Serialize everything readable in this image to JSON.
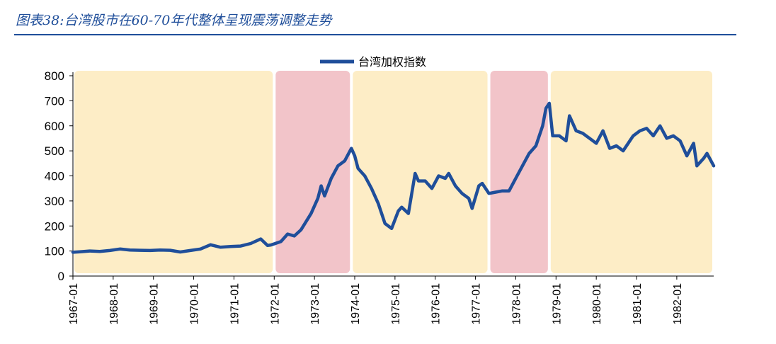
{
  "figure": {
    "title": "图表38:台湾股市在60-70年代整体呈现震荡调整走势"
  },
  "colors": {
    "line": "#1f4e9a",
    "range_band": "#fdedc6",
    "drawdown_band": "#f2c4c9",
    "axis": "#000000"
  },
  "chart_data": {
    "type": "line",
    "title": "",
    "xlabel": "",
    "ylabel": "",
    "ylim": [
      0,
      800
    ],
    "yticks": [
      0,
      100,
      200,
      300,
      400,
      500,
      600,
      700,
      800
    ],
    "xlim": [
      "1967-01",
      "1982-12"
    ],
    "xticks": [
      "1967-01",
      "1968-01",
      "1969-01",
      "1970-01",
      "1971-01",
      "1972-01",
      "1973-01",
      "1974-01",
      "1975-01",
      "1976-01",
      "1977-01",
      "1978-01",
      "1979-01",
      "1980-01",
      "1981-01",
      "1982-01"
    ],
    "grid": false,
    "legend": {
      "position": "top-center"
    },
    "series": [
      {
        "name": "台湾加权指数",
        "points": [
          [
            "1967-01",
            95
          ],
          [
            "1967-03",
            97
          ],
          [
            "1967-06",
            100
          ],
          [
            "1967-09",
            98
          ],
          [
            "1967-12",
            102
          ],
          [
            "1968-03",
            108
          ],
          [
            "1968-06",
            104
          ],
          [
            "1968-09",
            103
          ],
          [
            "1968-12",
            102
          ],
          [
            "1969-03",
            104
          ],
          [
            "1969-06",
            103
          ],
          [
            "1969-09",
            96
          ],
          [
            "1969-12",
            102
          ],
          [
            "1970-03",
            108
          ],
          [
            "1970-06",
            125
          ],
          [
            "1970-09",
            115
          ],
          [
            "1970-12",
            118
          ],
          [
            "1971-03",
            120
          ],
          [
            "1971-06",
            130
          ],
          [
            "1971-09",
            148
          ],
          [
            "1971-11",
            122
          ],
          [
            "1971-12",
            124
          ],
          [
            "1972-03",
            138
          ],
          [
            "1972-05",
            168
          ],
          [
            "1972-07",
            160
          ],
          [
            "1972-09",
            185
          ],
          [
            "1972-12",
            250
          ],
          [
            "1973-02",
            310
          ],
          [
            "1973-03",
            360
          ],
          [
            "1973-04",
            320
          ],
          [
            "1973-06",
            390
          ],
          [
            "1973-08",
            440
          ],
          [
            "1973-10",
            460
          ],
          [
            "1973-12",
            510
          ],
          [
            "1974-01",
            480
          ],
          [
            "1974-02",
            430
          ],
          [
            "1974-04",
            400
          ],
          [
            "1974-06",
            350
          ],
          [
            "1974-08",
            290
          ],
          [
            "1974-10",
            210
          ],
          [
            "1974-12",
            190
          ],
          [
            "1975-02",
            260
          ],
          [
            "1975-03",
            275
          ],
          [
            "1975-05",
            250
          ],
          [
            "1975-07",
            410
          ],
          [
            "1975-08",
            380
          ],
          [
            "1975-10",
            380
          ],
          [
            "1975-12",
            350
          ],
          [
            "1976-02",
            400
          ],
          [
            "1976-04",
            390
          ],
          [
            "1976-05",
            410
          ],
          [
            "1976-07",
            360
          ],
          [
            "1976-09",
            330
          ],
          [
            "1976-11",
            310
          ],
          [
            "1976-12",
            270
          ],
          [
            "1977-02",
            360
          ],
          [
            "1977-03",
            370
          ],
          [
            "1977-05",
            330
          ],
          [
            "1977-07",
            335
          ],
          [
            "1977-09",
            340
          ],
          [
            "1977-11",
            340
          ],
          [
            "1978-01",
            390
          ],
          [
            "1978-03",
            440
          ],
          [
            "1978-05",
            490
          ],
          [
            "1978-07",
            520
          ],
          [
            "1978-09",
            600
          ],
          [
            "1978-10",
            670
          ],
          [
            "1978-11",
            690
          ],
          [
            "1978-12",
            560
          ],
          [
            "1979-02",
            560
          ],
          [
            "1979-04",
            540
          ],
          [
            "1979-05",
            640
          ],
          [
            "1979-07",
            580
          ],
          [
            "1979-09",
            570
          ],
          [
            "1979-11",
            550
          ],
          [
            "1980-01",
            530
          ],
          [
            "1980-03",
            580
          ],
          [
            "1980-05",
            510
          ],
          [
            "1980-07",
            520
          ],
          [
            "1980-09",
            500
          ],
          [
            "1980-12",
            560
          ],
          [
            "1981-02",
            580
          ],
          [
            "1981-04",
            590
          ],
          [
            "1981-06",
            560
          ],
          [
            "1981-08",
            600
          ],
          [
            "1981-10",
            550
          ],
          [
            "1981-12",
            560
          ],
          [
            "1982-02",
            540
          ],
          [
            "1982-04",
            480
          ],
          [
            "1982-06",
            530
          ],
          [
            "1982-07",
            440
          ],
          [
            "1982-09",
            470
          ],
          [
            "1982-10",
            490
          ],
          [
            "1982-12",
            440
          ]
        ]
      }
    ],
    "shaded_regions": [
      {
        "kind": "range",
        "x0": "1967-01",
        "x1": "1972-01"
      },
      {
        "kind": "drawdown",
        "x0": "1972-01",
        "x1": "1973-12"
      },
      {
        "kind": "range",
        "x0": "1973-12",
        "x1": "1977-05"
      },
      {
        "kind": "drawdown",
        "x0": "1977-05",
        "x1": "1978-11"
      },
      {
        "kind": "range",
        "x0": "1978-11",
        "x1": "1982-12"
      }
    ]
  }
}
